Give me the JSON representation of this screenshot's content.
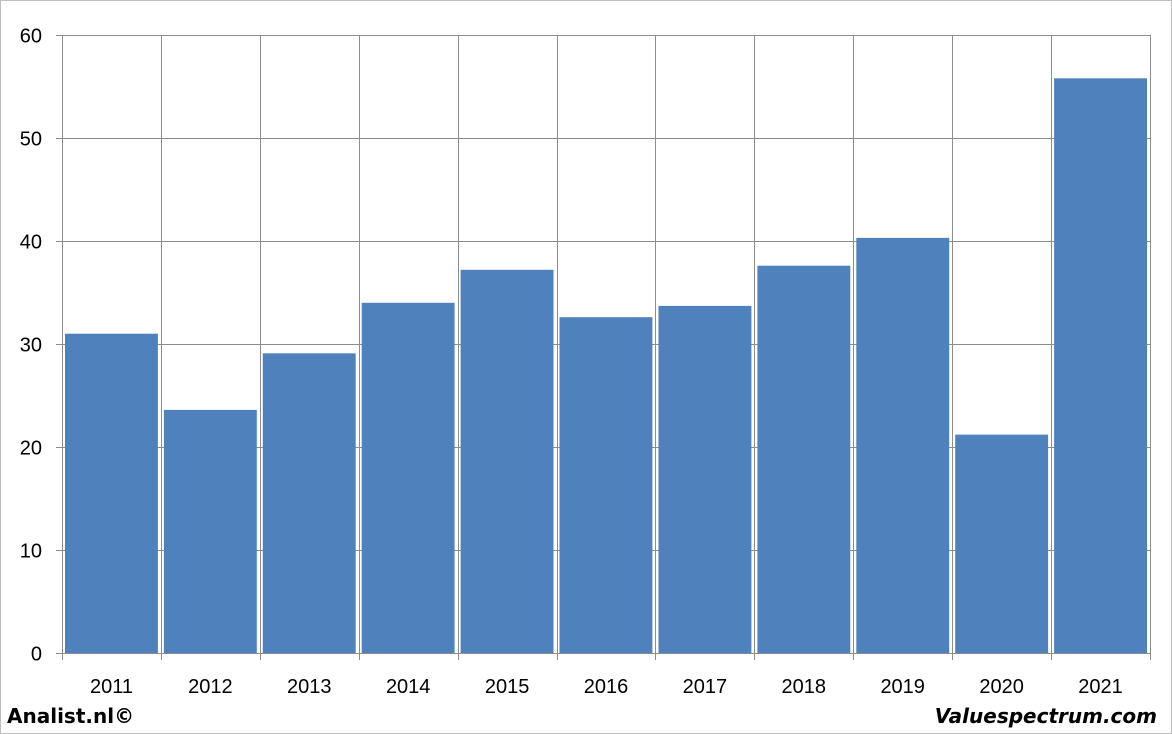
{
  "chart_data": {
    "type": "bar",
    "title": "",
    "xlabel": "",
    "ylabel": "",
    "categories": [
      "2011",
      "2012",
      "2013",
      "2014",
      "2015",
      "2016",
      "2017",
      "2018",
      "2019",
      "2020",
      "2021"
    ],
    "values": [
      31.0,
      23.6,
      29.1,
      34.0,
      37.2,
      32.6,
      33.7,
      37.6,
      40.3,
      21.2,
      55.8
    ],
    "ylim": [
      0,
      60
    ],
    "yticks": [
      0,
      10,
      20,
      30,
      40,
      50,
      60
    ],
    "grid": true,
    "legend": "none",
    "bar_color": "#4f81bd"
  },
  "footer": {
    "left_text": "Analist.nl©",
    "right_text": "Valuespectrum.com"
  }
}
